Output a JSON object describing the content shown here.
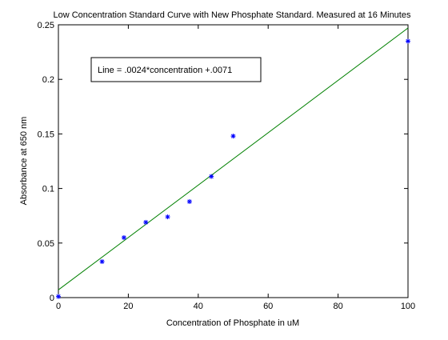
{
  "chart_data": {
    "type": "scatter",
    "title": "Low Concentration Standard Curve with New Phosphate Standard. Measured at 16 Minutes",
    "xlabel": "Concentration of Phosphate in uM",
    "ylabel": "Absorbance at 650 nm",
    "xlim": [
      0,
      100
    ],
    "ylim": [
      0,
      0.25
    ],
    "x_ticks": [
      0,
      20,
      40,
      60,
      80,
      100
    ],
    "y_ticks": [
      0,
      0.05,
      0.1,
      0.15,
      0.2,
      0.25
    ],
    "x_tick_labels": [
      "0",
      "20",
      "40",
      "60",
      "80",
      "100"
    ],
    "y_tick_labels": [
      "0",
      "0.05",
      "0.1",
      "0.15",
      "0.2",
      "0.25"
    ],
    "grid": false,
    "series": [
      {
        "marker": "asterisk",
        "color": "#0000ff",
        "x": [
          0,
          12.5,
          18.75,
          25,
          31.25,
          37.5,
          43.75,
          50,
          100
        ],
        "y": [
          0.001,
          0.033,
          0.055,
          0.069,
          0.074,
          0.088,
          0.111,
          0.148,
          0.235
        ]
      }
    ],
    "fit_line": {
      "color": "#008000",
      "slope": 0.0024,
      "intercept": 0.0071,
      "x_range": [
        0,
        100
      ]
    },
    "annotation": "Line = .0024*concentration +.0071"
  }
}
